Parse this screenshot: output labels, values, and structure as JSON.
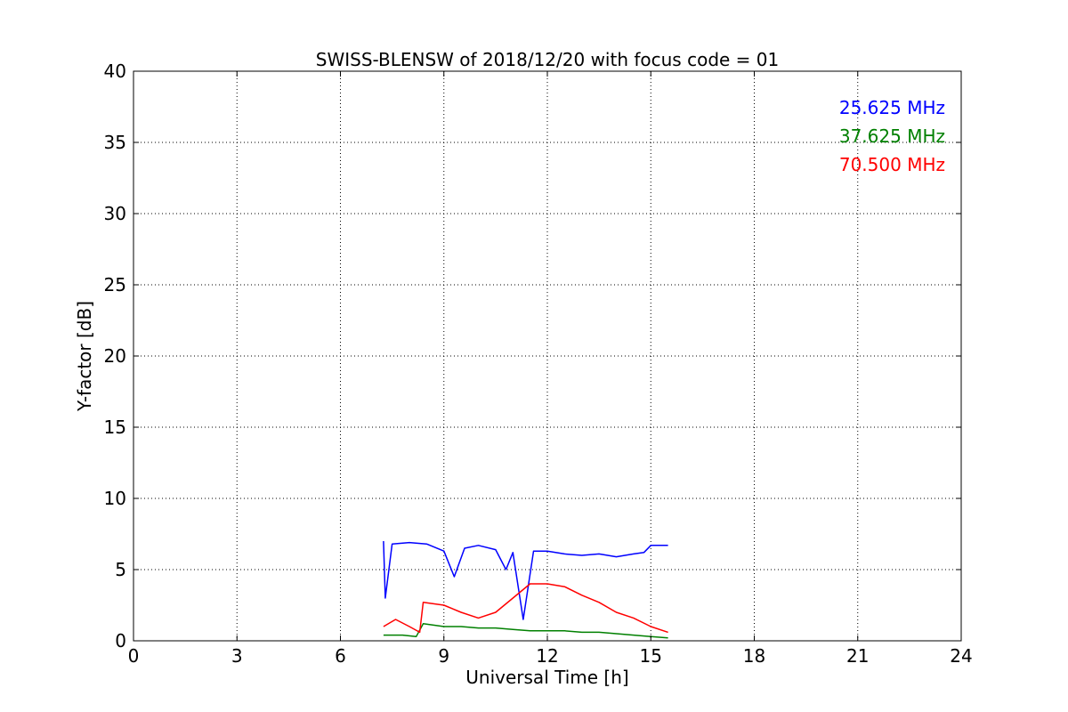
{
  "chart_data": {
    "type": "line",
    "title": "SWISS-BLENSW of 2018/12/20 with focus code = 01",
    "xlabel": "Universal Time [h]",
    "ylabel": "Y-factor [dB]",
    "xlim": [
      0,
      24
    ],
    "ylim": [
      0,
      40
    ],
    "xticks": [
      "0",
      "3",
      "6",
      "9",
      "12",
      "15",
      "18",
      "21",
      "24"
    ],
    "yticks": [
      "0",
      "5",
      "10",
      "15",
      "20",
      "25",
      "30",
      "35",
      "40"
    ],
    "grid": true,
    "legend_position": "top-right",
    "series": [
      {
        "name": "25.625 MHz",
        "color": "#0000ff",
        "x": [
          7.25,
          7.3,
          7.5,
          8.0,
          8.5,
          9.0,
          9.3,
          9.6,
          10.0,
          10.5,
          10.8,
          11.0,
          11.3,
          11.6,
          12.0,
          12.5,
          13.0,
          13.5,
          14.0,
          14.5,
          14.8,
          15.0,
          15.5
        ],
        "y": [
          7.0,
          3.0,
          6.8,
          6.9,
          6.8,
          6.3,
          4.5,
          6.5,
          6.7,
          6.4,
          5.0,
          6.2,
          1.5,
          6.3,
          6.3,
          6.1,
          6.0,
          6.1,
          5.9,
          6.1,
          6.2,
          6.7,
          6.7
        ]
      },
      {
        "name": "37.625 MHz",
        "color": "#008000",
        "x": [
          7.25,
          7.8,
          8.2,
          8.4,
          9.0,
          9.5,
          10.0,
          10.5,
          11.0,
          11.5,
          12.0,
          12.5,
          13.0,
          13.5,
          14.0,
          14.5,
          15.0,
          15.5
        ],
        "y": [
          0.4,
          0.4,
          0.3,
          1.2,
          1.0,
          1.0,
          0.9,
          0.9,
          0.8,
          0.7,
          0.7,
          0.7,
          0.6,
          0.6,
          0.5,
          0.4,
          0.3,
          0.2
        ]
      },
      {
        "name": "70.500 MHz",
        "color": "#ff0000",
        "x": [
          7.25,
          7.6,
          8.0,
          8.3,
          8.4,
          9.0,
          9.5,
          10.0,
          10.5,
          11.0,
          11.5,
          12.0,
          12.5,
          13.0,
          13.5,
          14.0,
          14.5,
          15.0,
          15.5
        ],
        "y": [
          1.0,
          1.5,
          1.0,
          0.6,
          2.7,
          2.5,
          2.0,
          1.6,
          2.0,
          3.0,
          4.0,
          4.0,
          3.8,
          3.2,
          2.7,
          2.0,
          1.6,
          1.0,
          0.6
        ]
      }
    ]
  }
}
